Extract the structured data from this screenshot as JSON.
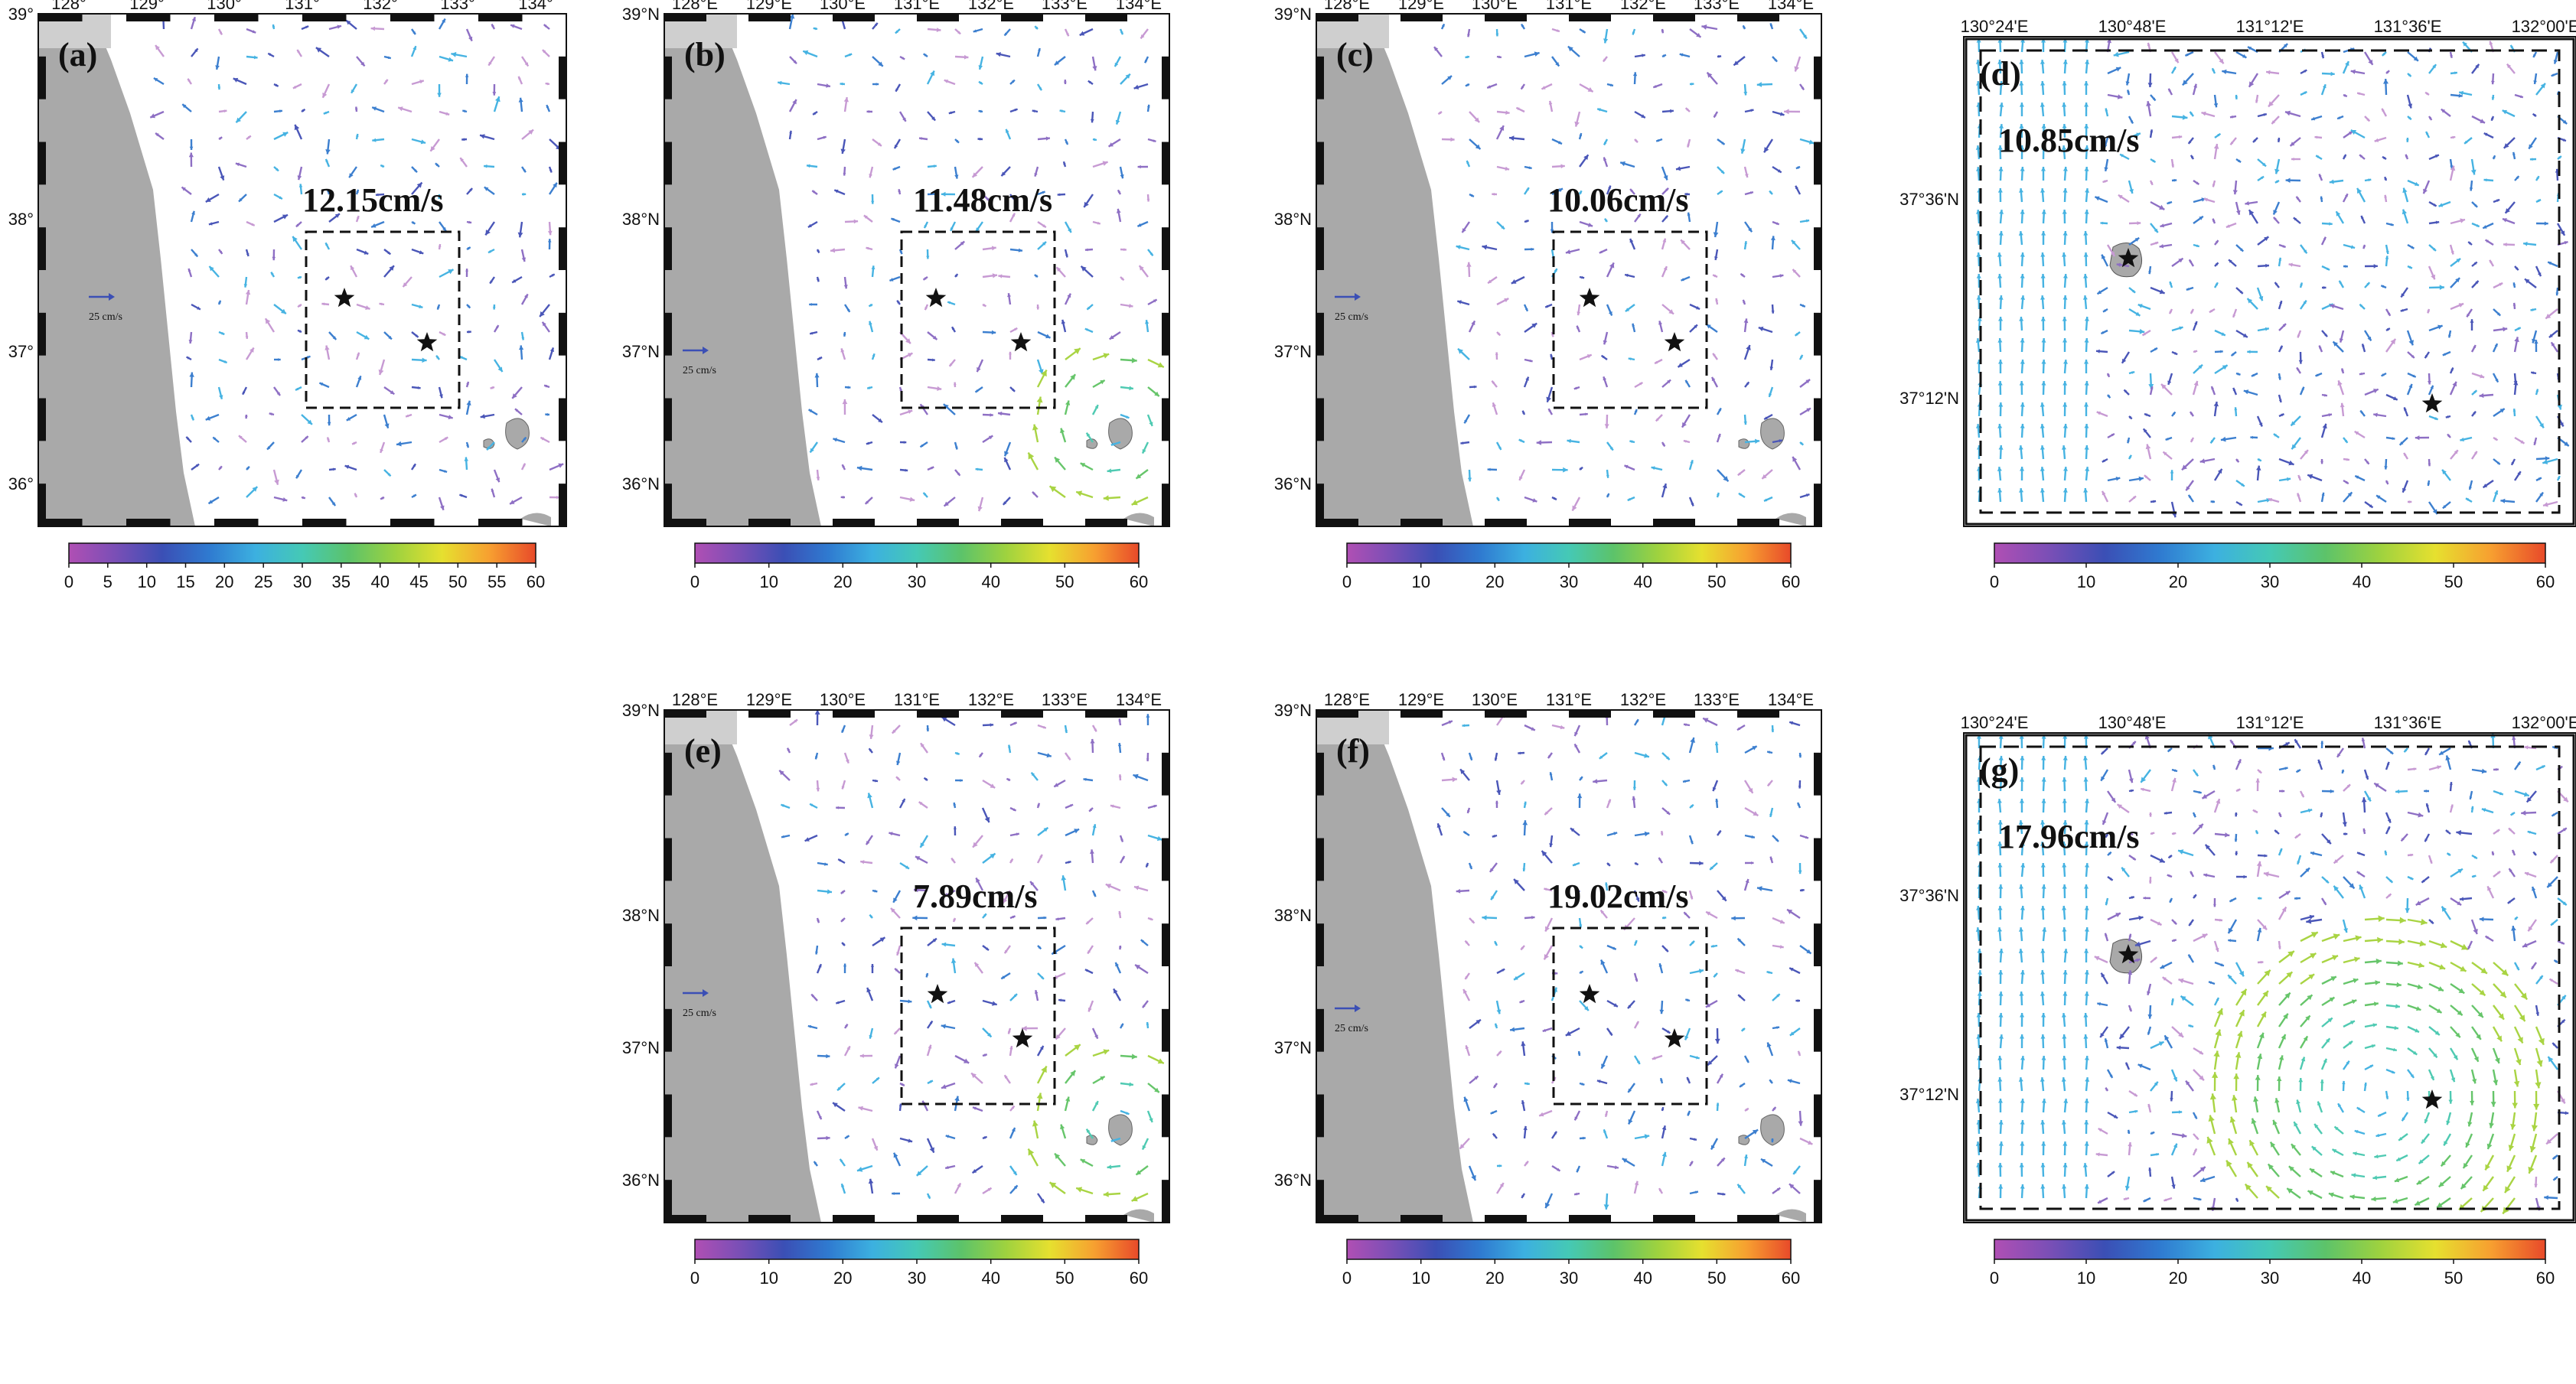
{
  "colorbar_stops": [
    "#b04fb4",
    "#7a4fb6",
    "#3b4fb5",
    "#2f7ad0",
    "#3cb0e0",
    "#45c9b5",
    "#5cc36a",
    "#9ed23f",
    "#e6e02f",
    "#f7a030",
    "#e84a2a"
  ],
  "arrow_colors": [
    "#c79ad3",
    "#8e6fc4",
    "#4a56b8",
    "#3c7fcf",
    "#46b3e2",
    "#4fcab2",
    "#66c56a",
    "#a9d443",
    "#e2e03a"
  ],
  "land_color": "#a9a9a9",
  "panels": [
    {
      "id": "a",
      "label": "(a)",
      "speed": "12.15cm/s",
      "ref_label": "25 cm/s",
      "xticks": [
        "128°",
        "129°",
        "130°",
        "131°",
        "132°",
        "133°",
        "134°"
      ],
      "yticks": [
        "39°",
        "38°",
        "37°",
        "36°"
      ],
      "colorbar_ticks": [
        "0",
        "5",
        "10",
        "15",
        "20",
        "25",
        "30",
        "35",
        "40",
        "45",
        "50",
        "55",
        "60"
      ],
      "colorbar_range": [
        0,
        60
      ]
    },
    {
      "id": "b",
      "label": "(b)",
      "speed": "11.48cm/s",
      "ref_label": "25 cm/s",
      "xticks": [
        "128°E",
        "129°E",
        "130°E",
        "131°E",
        "132°E",
        "133°E",
        "134°E"
      ],
      "yticks": [
        "39°N",
        "38°N",
        "37°N",
        "36°N"
      ],
      "colorbar_ticks": [
        "0",
        "10",
        "20",
        "30",
        "40",
        "50",
        "60"
      ],
      "colorbar_range": [
        0,
        60
      ]
    },
    {
      "id": "c",
      "label": "(c)",
      "speed": "10.06cm/s",
      "ref_label": "25 cm/s",
      "xticks": [
        "128°E",
        "129°E",
        "130°E",
        "131°E",
        "132°E",
        "133°E",
        "134°E"
      ],
      "yticks": [
        "39°N",
        "38°N",
        "37°N",
        "36°N"
      ],
      "colorbar_ticks": [
        "0",
        "10",
        "20",
        "30",
        "40",
        "50",
        "60"
      ],
      "colorbar_range": [
        0,
        60
      ]
    },
    {
      "id": "d",
      "label": "(d)",
      "speed": "10.85cm/s",
      "xticks": [
        "130°24'E",
        "130°48'E",
        "131°12'E",
        "131°36'E",
        "132°00'E"
      ],
      "yticks": [
        "37°36'N",
        "37°12'N"
      ],
      "colorbar_ticks": [
        "0",
        "10",
        "20",
        "30",
        "40",
        "50",
        "60"
      ],
      "colorbar_range": [
        0,
        60
      ]
    },
    {
      "id": "e",
      "label": "(e)",
      "speed": "7.89cm/s",
      "ref_label": "25 cm/s",
      "xticks": [
        "128°E",
        "129°E",
        "130°E",
        "131°E",
        "132°E",
        "133°E",
        "134°E"
      ],
      "yticks": [
        "39°N",
        "38°N",
        "37°N",
        "36°N"
      ],
      "colorbar_ticks": [
        "0",
        "10",
        "20",
        "30",
        "40",
        "50",
        "60"
      ],
      "colorbar_range": [
        0,
        60
      ]
    },
    {
      "id": "f",
      "label": "(f)",
      "speed": "19.02cm/s",
      "ref_label": "25 cm/s",
      "xticks": [
        "128°E",
        "129°E",
        "130°E",
        "131°E",
        "132°E",
        "133°E",
        "134°E"
      ],
      "yticks": [
        "39°N",
        "38°N",
        "37°N",
        "36°N"
      ],
      "colorbar_ticks": [
        "0",
        "10",
        "20",
        "30",
        "40",
        "50",
        "60"
      ],
      "colorbar_range": [
        0,
        60
      ]
    },
    {
      "id": "g",
      "label": "(g)",
      "speed": "17.96cm/s",
      "xticks": [
        "130°24'E",
        "130°48'E",
        "131°12'E",
        "131°36'E",
        "132°00'E"
      ],
      "yticks": [
        "37°36'N",
        "37°12'N"
      ],
      "colorbar_ticks": [
        "0",
        "10",
        "20",
        "30",
        "40",
        "50",
        "60"
      ],
      "colorbar_range": [
        0,
        60
      ]
    }
  ]
}
